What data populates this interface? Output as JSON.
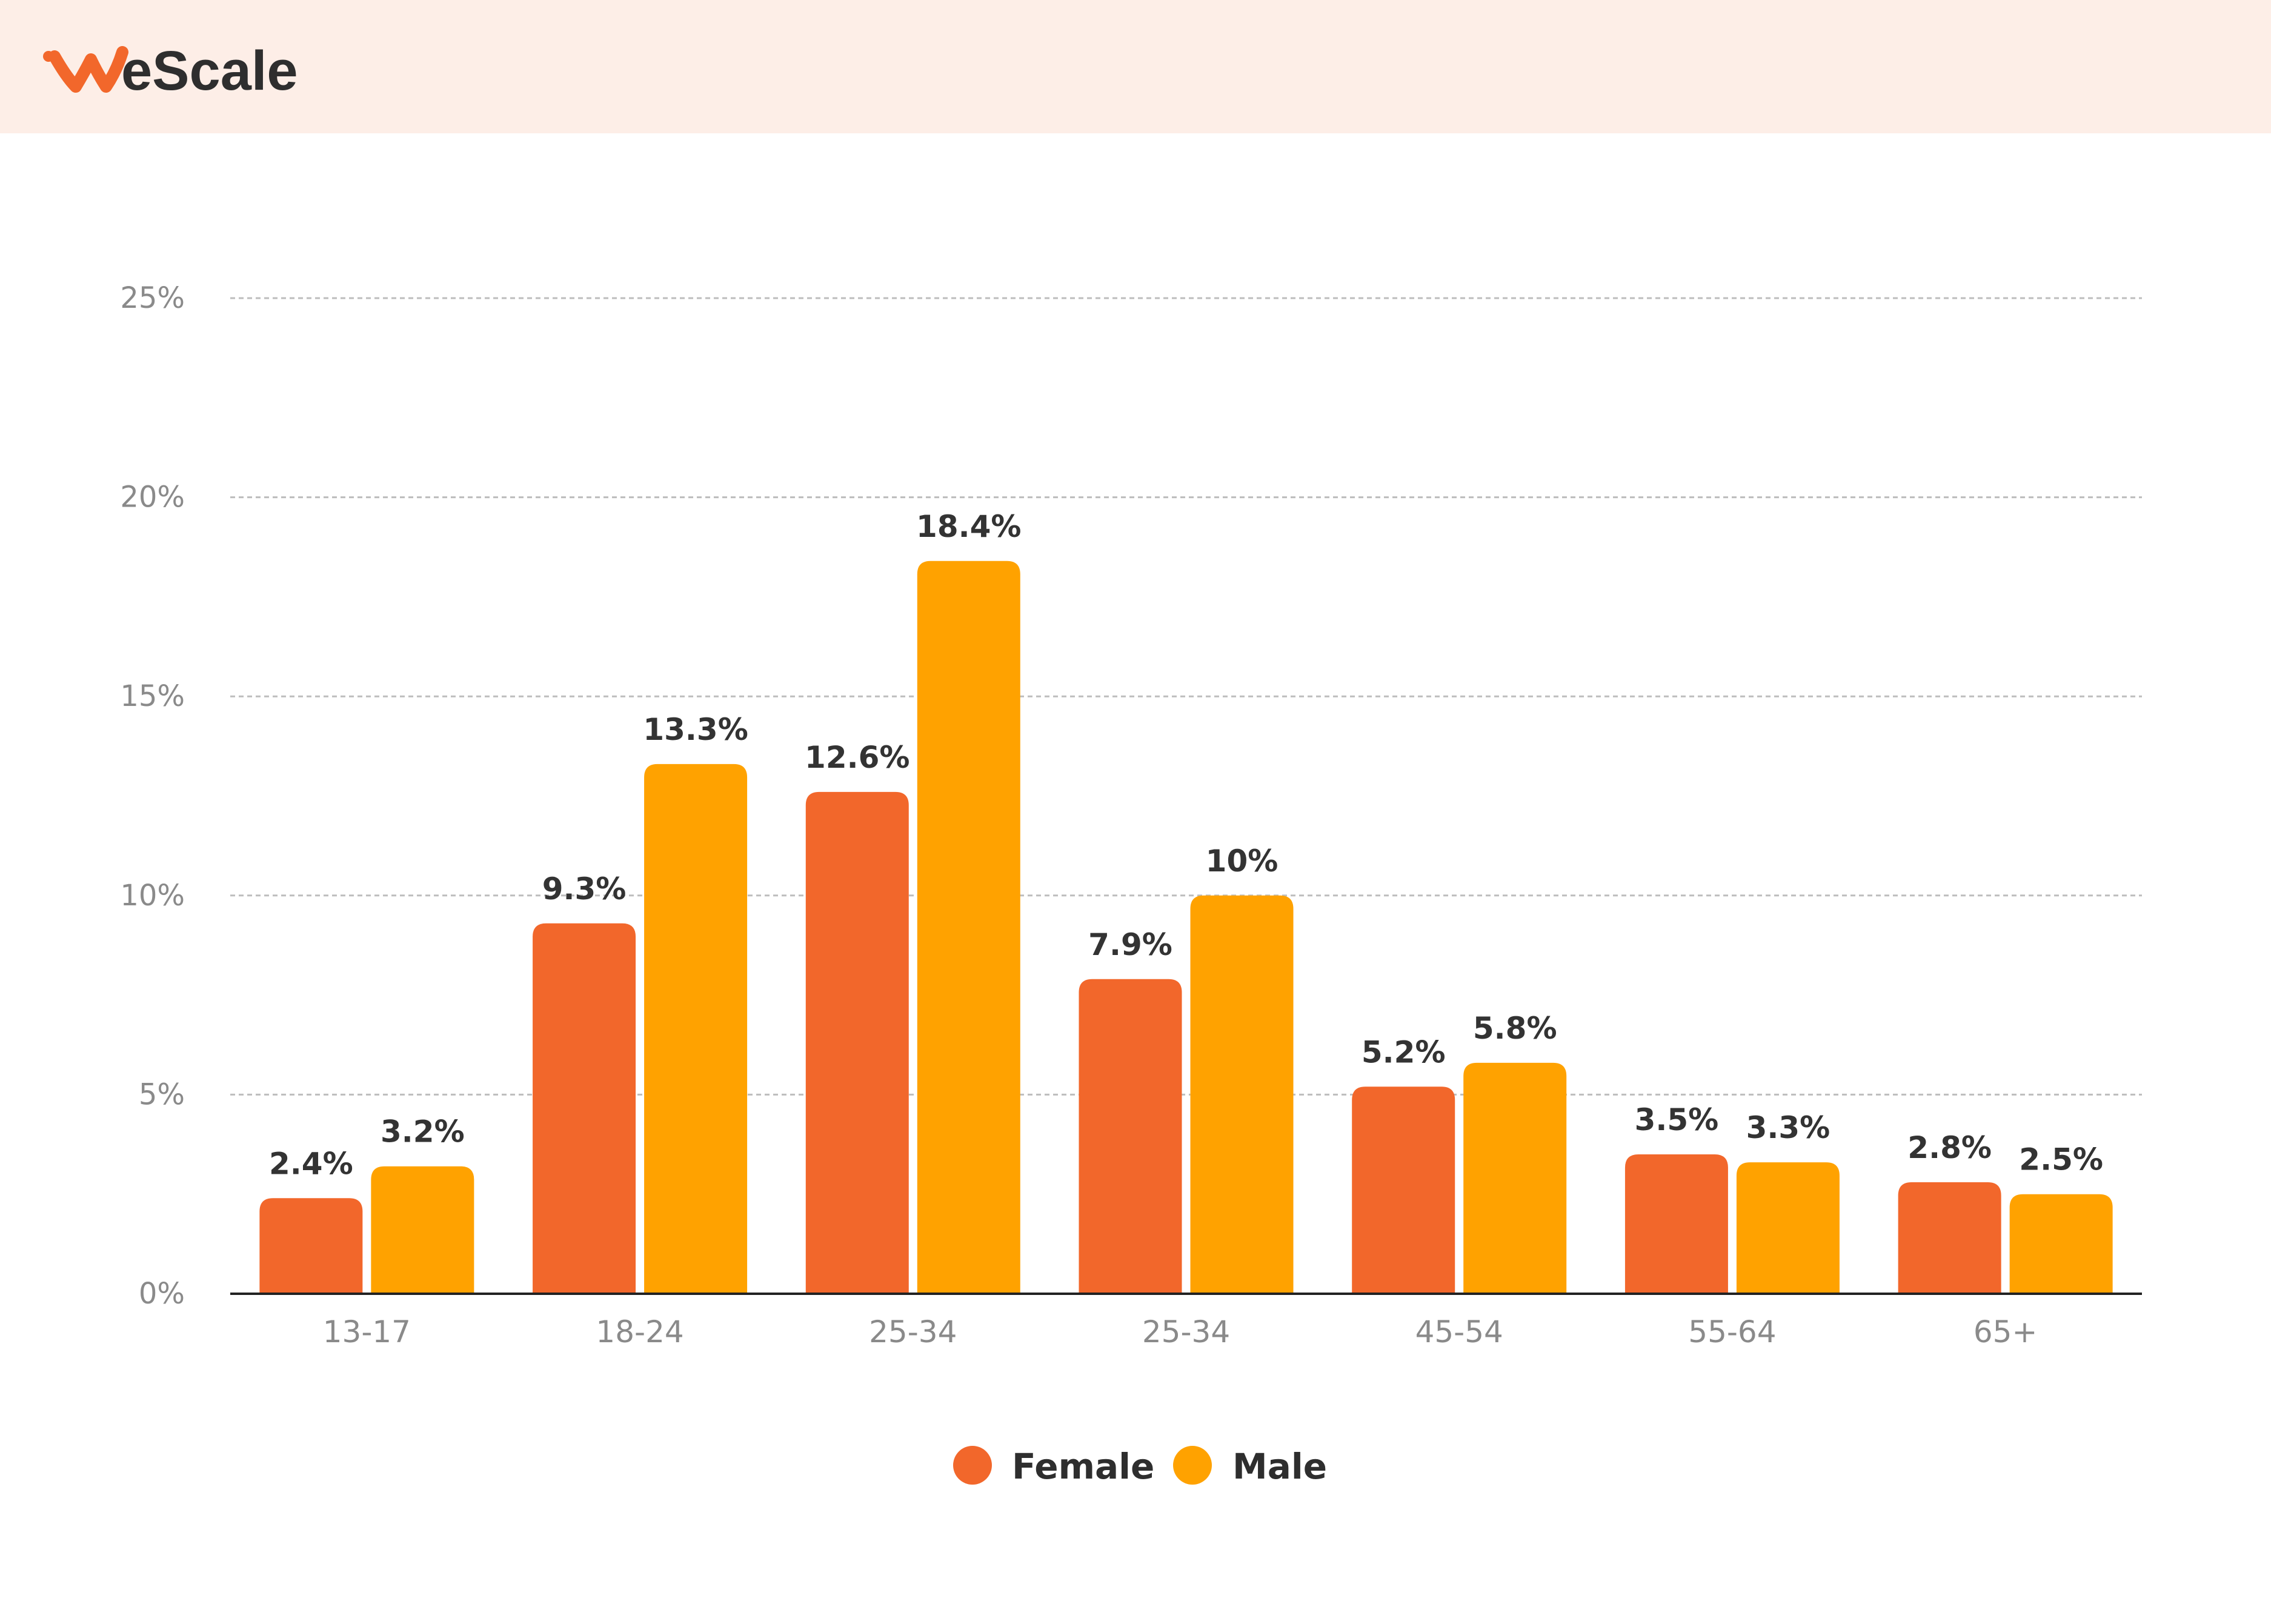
{
  "brand": {
    "name": "WeScale",
    "logo_text_first": "W",
    "logo_text_rest": "eScale",
    "accent_color": "#f2672b",
    "text_color": "#2e2e2e"
  },
  "header": {
    "background_color": "#fdeee7"
  },
  "chart_data": {
    "type": "bar",
    "title": "",
    "xlabel": "",
    "ylabel": "",
    "categories": [
      "13-17",
      "18-24",
      "25-34",
      "25-34",
      "45-54",
      "55-64",
      "65+"
    ],
    "series": [
      {
        "name": "Female",
        "color": "#f2672b",
        "values": [
          2.4,
          9.3,
          12.6,
          7.9,
          5.2,
          3.5,
          2.8
        ],
        "labels": [
          "2.4%",
          "9.3%",
          "12.6%",
          "7.9%",
          "5.2%",
          "3.5%",
          "2.8%"
        ]
      },
      {
        "name": "Male",
        "color": "#ffa200",
        "values": [
          3.2,
          13.3,
          18.4,
          10,
          5.8,
          3.3,
          2.5
        ],
        "labels": [
          "3.2%",
          "13.3%",
          "18.4%",
          "10%",
          "5.8%",
          "3.3%",
          "2.5%"
        ]
      }
    ],
    "ylim": [
      0,
      25
    ],
    "yticks": [
      0,
      5,
      10,
      15,
      20,
      25
    ],
    "ytick_labels": [
      "0%",
      "5%",
      "10%",
      "15%",
      "20%",
      "25%"
    ],
    "grid": true,
    "grid_style": "dashed",
    "legend_position": "bottom-center"
  }
}
